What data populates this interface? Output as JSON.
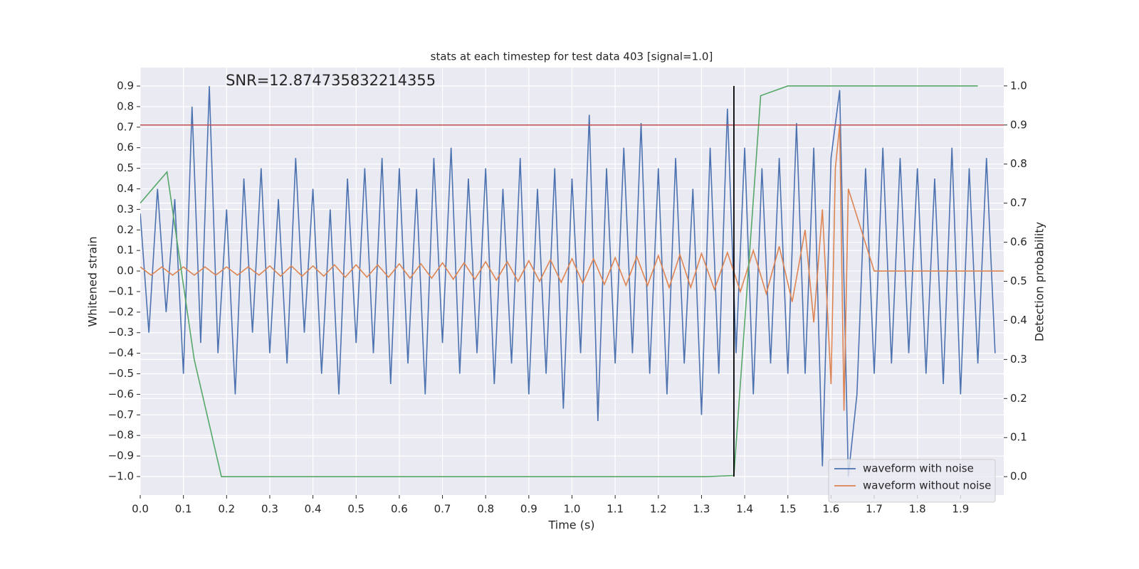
{
  "chart_data": {
    "type": "line",
    "title": "stats at each timestep for test data 403 [signal=1.0]",
    "xlabel": "Time (s)",
    "ylabel": "Whitened strain",
    "y2label": "Detection probability",
    "annotation": {
      "text": "SNR=12.874735832214355",
      "x": 0.198,
      "y": 0.924
    },
    "xlim": [
      0,
      2.0
    ],
    "ylim": [
      -1.09,
      0.99
    ],
    "y2lim": [
      -0.047,
      1.047
    ],
    "grid": true,
    "xticks": [
      {
        "value": 0,
        "label": "0.0"
      },
      0.1,
      0.2,
      0.3,
      0.4,
      0.5,
      0.6,
      0.7,
      0.8,
      0.9,
      {
        "value": 1,
        "label": "1.0"
      },
      1.1,
      1.2,
      1.3,
      1.4,
      1.5,
      1.6,
      1.7,
      1.8,
      1.9
    ],
    "yticks": [
      {
        "value": -1,
        "label": "−1.0"
      },
      {
        "value": -0.9,
        "label": "−0.9"
      },
      {
        "value": -0.8,
        "label": "−0.8"
      },
      {
        "value": -0.7,
        "label": "−0.7"
      },
      {
        "value": -0.6,
        "label": "−0.6"
      },
      {
        "value": -0.5,
        "label": "−0.5"
      },
      {
        "value": -0.4,
        "label": "−0.4"
      },
      {
        "value": -0.3,
        "label": "−0.3"
      },
      {
        "value": -0.2,
        "label": "−0.2"
      },
      {
        "value": -0.1,
        "label": "−0.1"
      },
      {
        "value": 0,
        "label": "0.0"
      },
      0.1,
      0.2,
      0.3,
      0.4,
      0.5,
      0.6,
      0.7,
      0.8,
      0.9
    ],
    "y2ticks": [
      {
        "value": 0,
        "label": "0.0"
      },
      0.1,
      0.2,
      0.3,
      0.4,
      0.5,
      0.6,
      0.7,
      0.8,
      0.9,
      {
        "value": 1,
        "label": "1.0"
      }
    ],
    "legend": "lower right",
    "series": [
      {
        "name": "waveform with noise",
        "color": "#4c72b0",
        "x": [
          0,
          0.02,
          0.04,
          0.06,
          0.08,
          0.1,
          0.12,
          0.14,
          0.16,
          0.18,
          0.2,
          0.22,
          0.24,
          0.26,
          0.28,
          0.3,
          0.32,
          0.34,
          0.36,
          0.38,
          0.4,
          0.42,
          0.44,
          0.46,
          0.48,
          0.5,
          0.52,
          0.54,
          0.56,
          0.58,
          0.6,
          0.62,
          0.64,
          0.66,
          0.68,
          0.7,
          0.72,
          0.74,
          0.76,
          0.78,
          0.8,
          0.82,
          0.84,
          0.86,
          0.88,
          0.9,
          0.92,
          0.94,
          0.96,
          0.98,
          1.0,
          1.02,
          1.04,
          1.06,
          1.08,
          1.1,
          1.12,
          1.14,
          1.16,
          1.18,
          1.2,
          1.22,
          1.24,
          1.26,
          1.28,
          1.3,
          1.32,
          1.34,
          1.36,
          1.38,
          1.4,
          1.42,
          1.44,
          1.46,
          1.48,
          1.5,
          1.52,
          1.54,
          1.56,
          1.58,
          1.6,
          1.62,
          1.64,
          1.66,
          1.68,
          1.7,
          1.72,
          1.74,
          1.76,
          1.78,
          1.8,
          1.82,
          1.84,
          1.86,
          1.88,
          1.9,
          1.92,
          1.94,
          1.96,
          1.98
        ],
        "values": [
          0.28,
          -0.3,
          0.4,
          -0.2,
          0.35,
          -0.5,
          0.8,
          -0.35,
          0.9,
          -0.4,
          0.3,
          -0.6,
          0.45,
          -0.3,
          0.5,
          -0.4,
          0.35,
          -0.45,
          0.55,
          -0.3,
          0.4,
          -0.5,
          0.3,
          -0.6,
          0.45,
          -0.35,
          0.5,
          -0.4,
          0.55,
          -0.55,
          0.5,
          -0.45,
          0.4,
          -0.6,
          0.55,
          -0.35,
          0.6,
          -0.5,
          0.45,
          -0.4,
          0.5,
          -0.55,
          0.4,
          -0.45,
          0.55,
          -0.6,
          0.4,
          -0.5,
          0.5,
          -0.67,
          0.45,
          -0.4,
          0.76,
          -0.73,
          0.5,
          -0.45,
          0.6,
          -0.4,
          0.72,
          -0.5,
          0.5,
          -0.6,
          0.55,
          -0.45,
          0.4,
          -0.7,
          0.6,
          -0.5,
          0.79,
          -0.4,
          0.6,
          -0.6,
          0.5,
          -0.45,
          0.55,
          -0.5,
          0.72,
          -0.5,
          0.6,
          -0.95,
          0.55,
          0.88,
          -1.0,
          -0.6,
          0.5,
          -0.5,
          0.6,
          -0.45,
          0.55,
          -0.4,
          0.5,
          -0.5,
          0.45,
          -0.55,
          0.6,
          -0.6,
          0.5,
          -0.45,
          0.55,
          -0.4
        ]
      },
      {
        "name": "waveform without noise",
        "color": "#dd8452",
        "x": [
          0,
          0.025,
          0.05,
          0.075,
          0.1,
          0.125,
          0.15,
          0.175,
          0.2,
          0.225,
          0.25,
          0.275,
          0.3,
          0.325,
          0.35,
          0.375,
          0.4,
          0.425,
          0.45,
          0.475,
          0.5,
          0.525,
          0.55,
          0.575,
          0.6,
          0.625,
          0.65,
          0.675,
          0.7,
          0.725,
          0.75,
          0.775,
          0.8,
          0.825,
          0.85,
          0.875,
          0.9,
          0.925,
          0.95,
          0.975,
          1.0,
          1.025,
          1.05,
          1.075,
          1.1,
          1.125,
          1.15,
          1.175,
          1.2,
          1.225,
          1.25,
          1.275,
          1.3,
          1.33,
          1.36,
          1.39,
          1.42,
          1.45,
          1.48,
          1.51,
          1.54,
          1.56,
          1.58,
          1.6,
          1.61,
          1.62,
          1.63,
          1.64,
          1.7,
          2.0
        ],
        "values": [
          0.02,
          -0.02,
          0.02,
          -0.02,
          0.02,
          -0.02,
          0.02,
          -0.02,
          0.02,
          -0.02,
          0.02,
          -0.02,
          0.025,
          -0.025,
          0.025,
          -0.025,
          0.025,
          -0.025,
          0.03,
          -0.03,
          0.03,
          -0.03,
          0.03,
          -0.03,
          0.035,
          -0.035,
          0.035,
          -0.035,
          0.04,
          -0.04,
          0.04,
          -0.04,
          0.045,
          -0.045,
          0.045,
          -0.05,
          0.05,
          -0.05,
          0.055,
          -0.055,
          0.06,
          -0.06,
          0.06,
          -0.065,
          0.065,
          -0.07,
          0.07,
          -0.07,
          0.075,
          -0.08,
          0.08,
          -0.08,
          0.085,
          -0.09,
          0.09,
          -0.1,
          0.1,
          -0.11,
          0.12,
          -0.15,
          0.2,
          -0.25,
          0.3,
          -0.55,
          0.5,
          0.71,
          -0.68,
          0.4,
          0.0,
          0.0
        ]
      },
      {
        "color": "#55a868",
        "axis": "y2",
        "x": [
          0,
          0.062,
          0.125,
          0.188,
          0.25,
          1.31,
          1.375,
          1.437,
          1.5,
          1.94
        ],
        "values": [
          0.7,
          0.78,
          0.3,
          0.0,
          0.0,
          0.0,
          0.003,
          0.975,
          1.0,
          1.0
        ]
      }
    ],
    "threshold": {
      "value": 0.9,
      "axis": "y2",
      "color": "#c44e52"
    },
    "event_line": {
      "x": 1.375,
      "y2_range": [
        0,
        1
      ],
      "color": "#000000"
    }
  }
}
